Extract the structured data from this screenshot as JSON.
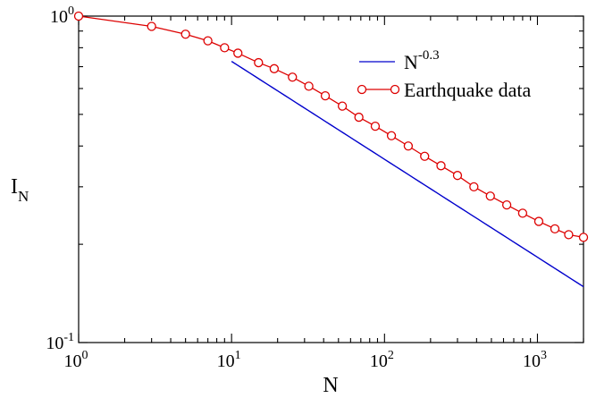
{
  "chart_data": {
    "type": "line",
    "xscale": "log",
    "yscale": "log",
    "xlim": [
      1,
      2000
    ],
    "ylim": [
      0.1,
      1
    ],
    "xlabel": "N",
    "ylabel": "I",
    "ylabel_sub": "N",
    "x_ticks": [
      {
        "base": "10",
        "exp": "0",
        "value": 1
      },
      {
        "base": "10",
        "exp": "1",
        "value": 10
      },
      {
        "base": "10",
        "exp": "2",
        "value": 100
      },
      {
        "base": "10",
        "exp": "3",
        "value": 1000
      }
    ],
    "y_ticks": [
      {
        "base": "10",
        "exp": "-1",
        "value": 0.1
      },
      {
        "base": "10",
        "exp": "0",
        "value": 1
      }
    ],
    "legend_position": "top-right",
    "series": [
      {
        "legend_base": "N",
        "legend_exp": "-0.3",
        "color": "#0000cc",
        "style": "line",
        "x_range": [
          10,
          2000
        ],
        "formula": "1.45 * N^-0.3",
        "amplitude": 1.45,
        "exponent": -0.3
      },
      {
        "name": "Earthquake data",
        "color": "#dd0000",
        "style": "line-with-open-circles",
        "x": [
          1,
          3,
          5,
          7,
          9,
          11,
          15,
          19,
          25,
          32,
          41,
          53,
          68,
          87,
          111,
          143,
          183,
          234,
          300,
          384,
          492,
          630,
          800,
          1020,
          1300,
          1600,
          2000
        ],
        "y": [
          1.0,
          0.93,
          0.88,
          0.84,
          0.8,
          0.77,
          0.72,
          0.69,
          0.65,
          0.61,
          0.57,
          0.53,
          0.49,
          0.46,
          0.43,
          0.4,
          0.372,
          0.348,
          0.325,
          0.3,
          0.281,
          0.264,
          0.249,
          0.235,
          0.223,
          0.214,
          0.21
        ]
      }
    ]
  }
}
